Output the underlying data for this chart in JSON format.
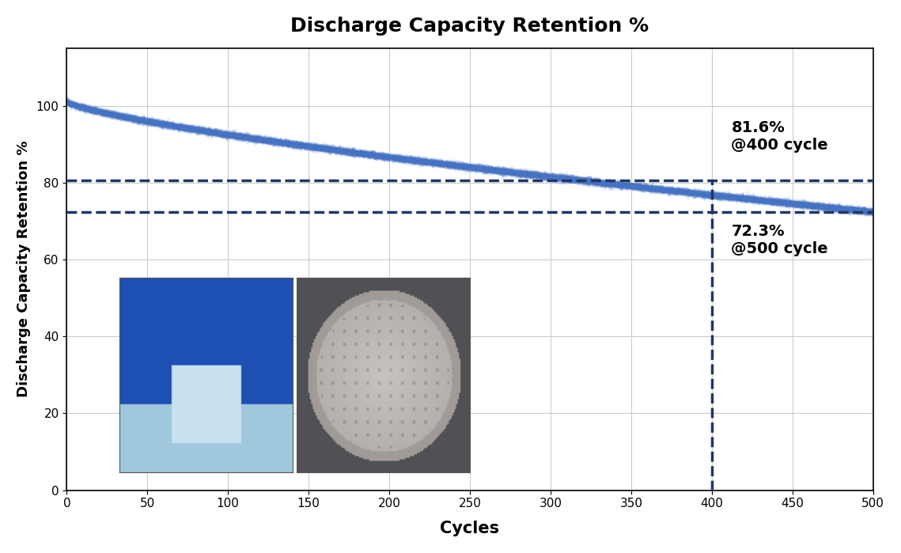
{
  "title": "Discharge Capacity Retention %",
  "xlabel": "Cycles",
  "ylabel": "Discharge Capacity Retention %",
  "x_start": 0,
  "x_end": 500,
  "y_start_val": 101.0,
  "y_end_val": 72.3,
  "annotation_400_val": 81.6,
  "annotation_500_val": 72.3,
  "hline1": 80.5,
  "hline2": 72.3,
  "vline_x": 400,
  "line_color": "#4472C4",
  "dashed_color": "#1F3864",
  "background_color": "#ffffff",
  "ylim": [
    0,
    115
  ],
  "xlim": [
    0,
    500
  ],
  "yticks": [
    0,
    20,
    40,
    60,
    80,
    100
  ],
  "xticks": [
    0,
    50,
    100,
    150,
    200,
    250,
    300,
    350,
    400,
    450,
    500
  ],
  "title_fontsize": 18,
  "axis_label_fontsize": 13,
  "tick_fontsize": 11,
  "annotation_fontsize": 14,
  "line_thickness": 6,
  "noise_amplitude": 0.4,
  "n_noise_layers": 40,
  "noise_alpha": 0.12
}
